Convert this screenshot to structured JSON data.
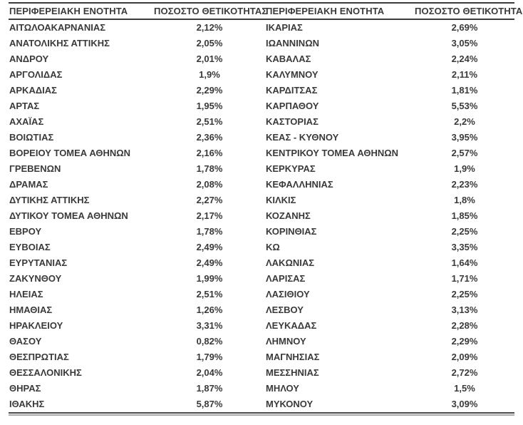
{
  "table": {
    "headers": {
      "region_left": "ΠΕΡΙΦΕΡΕΙΑΚΗ ΕΝΟΤΗΤΑ",
      "pct_left": "ΠΟΣΟΣΤΟ ΘΕΤΙΚΟΤΗΤΑΣ",
      "region_right": "ΠΕΡΙΦΕΡΕΙΑΚΗ ΕΝΟΤΗΤΑ",
      "pct_right": "ΠΟΣΟΣΤΟ ΘΕΤΙΚΟΤΗΤΑΣ"
    },
    "rows": [
      {
        "left": {
          "region": "ΑΙΤΩΛΟΑΚΑΡΝΑΝΙΑΣ",
          "pct": "2,12%"
        },
        "right": {
          "region": "ΙΚΑΡΙΑΣ",
          "pct": "2,69%"
        }
      },
      {
        "left": {
          "region": "ΑΝΑΤΟΛΙΚΗΣ ΑΤΤΙΚΗΣ",
          "pct": "2,05%"
        },
        "right": {
          "region": "ΙΩΑΝΝΙΝΩΝ",
          "pct": "3,05%"
        }
      },
      {
        "left": {
          "region": "ΑΝΔΡΟΥ",
          "pct": "2,01%"
        },
        "right": {
          "region": "ΚΑΒΑΛΑΣ",
          "pct": "2,24%"
        }
      },
      {
        "left": {
          "region": "ΑΡΓΟΛΙΔΑΣ",
          "pct": "1,9%"
        },
        "right": {
          "region": "ΚΑΛΥΜΝΟΥ",
          "pct": "2,11%"
        }
      },
      {
        "left": {
          "region": "ΑΡΚΑΔΙΑΣ",
          "pct": "2,29%"
        },
        "right": {
          "region": "ΚΑΡΔΙΤΣΑΣ",
          "pct": "1,81%"
        }
      },
      {
        "left": {
          "region": "ΑΡΤΑΣ",
          "pct": "1,95%"
        },
        "right": {
          "region": "ΚΑΡΠΑΘΟΥ",
          "pct": "5,53%"
        }
      },
      {
        "left": {
          "region": "ΑΧΑΪΑΣ",
          "pct": "2,51%"
        },
        "right": {
          "region": "ΚΑΣΤΟΡΙΑΣ",
          "pct": "2,2%"
        }
      },
      {
        "left": {
          "region": "ΒΟΙΩΤΙΑΣ",
          "pct": "2,36%"
        },
        "right": {
          "region": "ΚΕΑΣ - ΚΥΘΝΟΥ",
          "pct": "3,95%"
        }
      },
      {
        "left": {
          "region": "ΒΟΡΕΙΟΥ ΤΟΜΕΑ ΑΘΗΝΩΝ",
          "pct": "2,16%"
        },
        "right": {
          "region": "ΚΕΝΤΡΙΚΟΥ ΤΟΜΕΑ ΑΘΗΝΩΝ",
          "pct": "2,57%"
        }
      },
      {
        "left": {
          "region": "ΓΡΕΒΕΝΩΝ",
          "pct": "1,78%"
        },
        "right": {
          "region": "ΚΕΡΚΥΡΑΣ",
          "pct": "1,9%"
        }
      },
      {
        "left": {
          "region": "ΔΡΑΜΑΣ",
          "pct": "2,08%"
        },
        "right": {
          "region": "ΚΕΦΑΛΛΗΝΙΑΣ",
          "pct": "2,23%"
        }
      },
      {
        "left": {
          "region": "ΔΥΤΙΚΗΣ ΑΤΤΙΚΗΣ",
          "pct": "2,27%"
        },
        "right": {
          "region": "ΚΙΛΚΙΣ",
          "pct": "1,8%"
        }
      },
      {
        "left": {
          "region": "ΔΥΤΙΚΟΥ ΤΟΜΕΑ ΑΘΗΝΩΝ",
          "pct": "2,17%"
        },
        "right": {
          "region": "ΚΟΖΑΝΗΣ",
          "pct": "1,85%"
        }
      },
      {
        "left": {
          "region": "ΕΒΡΟΥ",
          "pct": "1,78%"
        },
        "right": {
          "region": "ΚΟΡΙΝΘΙΑΣ",
          "pct": "2,25%"
        }
      },
      {
        "left": {
          "region": "ΕΥΒΟΙΑΣ",
          "pct": "2,49%"
        },
        "right": {
          "region": "ΚΩ",
          "pct": "3,35%"
        }
      },
      {
        "left": {
          "region": "ΕΥΡΥΤΑΝΙΑΣ",
          "pct": "2,49%"
        },
        "right": {
          "region": "ΛΑΚΩΝΙΑΣ",
          "pct": "1,64%"
        }
      },
      {
        "left": {
          "region": "ΖΑΚΥΝΘΟΥ",
          "pct": "1,99%"
        },
        "right": {
          "region": "ΛΑΡΙΣΑΣ",
          "pct": "1,71%"
        }
      },
      {
        "left": {
          "region": "ΗΛΕΙΑΣ",
          "pct": "2,51%"
        },
        "right": {
          "region": "ΛΑΣΙΘΙΟΥ",
          "pct": "2,25%"
        }
      },
      {
        "left": {
          "region": "ΗΜΑΘΙΑΣ",
          "pct": "1,26%"
        },
        "right": {
          "region": "ΛΕΣΒΟΥ",
          "pct": "3,13%"
        }
      },
      {
        "left": {
          "region": "ΗΡΑΚΛΕΙΟΥ",
          "pct": "3,31%"
        },
        "right": {
          "region": "ΛΕΥΚΑΔΑΣ",
          "pct": "2,28%"
        }
      },
      {
        "left": {
          "region": "ΘΑΣΟΥ",
          "pct": "0,82%"
        },
        "right": {
          "region": "ΛΗΜΝΟΥ",
          "pct": "2,29%"
        }
      },
      {
        "left": {
          "region": "ΘΕΣΠΡΩΤΙΑΣ",
          "pct": "1,79%"
        },
        "right": {
          "region": "ΜΑΓΝΗΣΙΑΣ",
          "pct": "2,09%"
        }
      },
      {
        "left": {
          "region": "ΘΕΣΣΑΛΟΝΙΚΗΣ",
          "pct": "2,04%"
        },
        "right": {
          "region": "ΜΕΣΣΗΝΙΑΣ",
          "pct": "2,72%"
        }
      },
      {
        "left": {
          "region": "ΘΗΡΑΣ",
          "pct": "1,87%"
        },
        "right": {
          "region": "ΜΗΛΟΥ",
          "pct": "1,5%"
        }
      },
      {
        "left": {
          "region": "ΙΘΑΚΗΣ",
          "pct": "5,87%"
        },
        "right": {
          "region": "ΜΥΚΟΝΟΥ",
          "pct": "3,09%"
        }
      }
    ]
  },
  "colors": {
    "text": "#3a3a3a",
    "rule_dark": "#3c3c3c",
    "rule_light": "#a8a8a8",
    "background": "#ffffff"
  }
}
